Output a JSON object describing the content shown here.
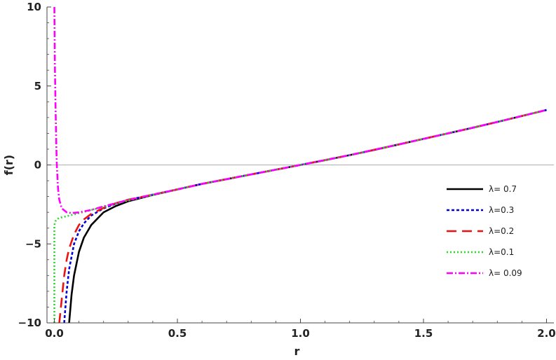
{
  "chart_data": {
    "type": "line",
    "title": "",
    "xlabel": "r",
    "ylabel": "f(r)",
    "xlim": [
      -0.03,
      2.03
    ],
    "ylim": [
      -10,
      10
    ],
    "xticks": [
      0.0,
      0.5,
      1.0,
      1.5,
      2.0
    ],
    "xtick_labels": [
      "0.0",
      "0.5",
      "1.0",
      "1.5",
      "2.0"
    ],
    "yticks": [
      -10,
      -5,
      0,
      5,
      10
    ],
    "ytick_labels": [
      "−10",
      "−5",
      "0",
      "5",
      "10"
    ],
    "zero_line": true,
    "grid": false,
    "legend_position": "right",
    "series": [
      {
        "name": "λ= 0.7",
        "color": "#000000",
        "dash": "solid",
        "x": [
          0.06,
          0.07,
          0.08,
          0.1,
          0.12,
          0.15,
          0.2,
          0.25,
          0.3,
          0.35,
          0.4,
          0.5,
          0.6,
          0.7,
          0.8,
          0.9,
          0.95,
          1.0,
          1.1,
          1.2,
          1.3,
          1.4,
          1.5,
          1.6,
          1.7,
          1.8,
          1.9,
          2.0
        ],
        "y": [
          -10.0,
          -8.2,
          -7.0,
          -5.5,
          -4.6,
          -3.8,
          -3.0,
          -2.6,
          -2.3,
          -2.1,
          -1.9,
          -1.55,
          -1.2,
          -0.9,
          -0.6,
          -0.3,
          -0.15,
          0.0,
          0.3,
          0.62,
          0.95,
          1.3,
          1.65,
          2.0,
          2.35,
          2.72,
          3.1,
          3.48
        ]
      },
      {
        "name": "λ=0.3",
        "color": "#0000dd",
        "dash": "dotted-dense",
        "x": [
          0.04,
          0.05,
          0.06,
          0.08,
          0.1,
          0.12,
          0.15,
          0.2,
          0.25,
          0.3,
          0.35,
          0.4,
          0.5,
          0.6,
          0.7,
          0.8,
          0.9,
          1.0,
          1.2,
          1.4,
          1.6,
          1.8,
          2.0
        ],
        "y": [
          -10.0,
          -8.0,
          -6.6,
          -5.0,
          -4.2,
          -3.7,
          -3.2,
          -2.75,
          -2.45,
          -2.2,
          -2.05,
          -1.88,
          -1.55,
          -1.2,
          -0.9,
          -0.6,
          -0.3,
          0.0,
          0.62,
          1.3,
          2.0,
          2.72,
          3.48
        ]
      },
      {
        "name": "λ=0.2",
        "color": "#ee1111",
        "dash": "long-dash",
        "x": [
          0.02,
          0.03,
          0.04,
          0.05,
          0.06,
          0.08,
          0.1,
          0.12,
          0.15,
          0.2,
          0.25,
          0.3,
          0.35,
          0.4,
          0.5,
          0.6,
          0.7,
          0.8,
          0.9,
          1.0,
          1.2,
          1.4,
          1.6,
          1.8,
          2.0
        ],
        "y": [
          -10.0,
          -8.5,
          -7.0,
          -6.0,
          -5.3,
          -4.4,
          -3.8,
          -3.45,
          -3.1,
          -2.72,
          -2.42,
          -2.2,
          -2.04,
          -1.88,
          -1.55,
          -1.2,
          -0.9,
          -0.6,
          -0.3,
          0.0,
          0.62,
          1.3,
          2.0,
          2.72,
          3.48
        ]
      },
      {
        "name": "λ=0.1",
        "color": "#22dd22",
        "dash": "dotted",
        "x": [
          0.0,
          0.0,
          0.005,
          0.01,
          0.02,
          0.05,
          0.1,
          0.15,
          0.2,
          0.25,
          0.3,
          0.35,
          0.4,
          0.5,
          0.6,
          0.7,
          0.8,
          0.9,
          1.0,
          1.2,
          1.4,
          1.6,
          1.8,
          2.0
        ],
        "y": [
          -10.0,
          -3.8,
          -3.55,
          -3.45,
          -3.35,
          -3.25,
          -3.05,
          -2.85,
          -2.65,
          -2.45,
          -2.25,
          -2.08,
          -1.9,
          -1.55,
          -1.2,
          -0.9,
          -0.6,
          -0.3,
          0.0,
          0.62,
          1.3,
          2.0,
          2.72,
          3.48
        ]
      },
      {
        "name": "λ= 0.09",
        "color": "#ff00ff",
        "dash": "dash-dot",
        "x": [
          0.0,
          0.002,
          0.005,
          0.008,
          0.01,
          0.015,
          0.02,
          0.03,
          0.05,
          0.07,
          0.1,
          0.15,
          0.2,
          0.25,
          0.3,
          0.35,
          0.4,
          0.5,
          0.6,
          0.7,
          0.8,
          0.9,
          1.0,
          1.2,
          1.4,
          1.6,
          1.8,
          2.0
        ],
        "y": [
          10.0,
          6.5,
          3.5,
          1.2,
          0.0,
          -1.5,
          -2.2,
          -2.75,
          -3.0,
          -3.05,
          -3.0,
          -2.85,
          -2.62,
          -2.42,
          -2.22,
          -2.05,
          -1.88,
          -1.55,
          -1.2,
          -0.9,
          -0.6,
          -0.3,
          0.0,
          0.62,
          1.3,
          2.0,
          2.72,
          3.48
        ]
      }
    ]
  }
}
